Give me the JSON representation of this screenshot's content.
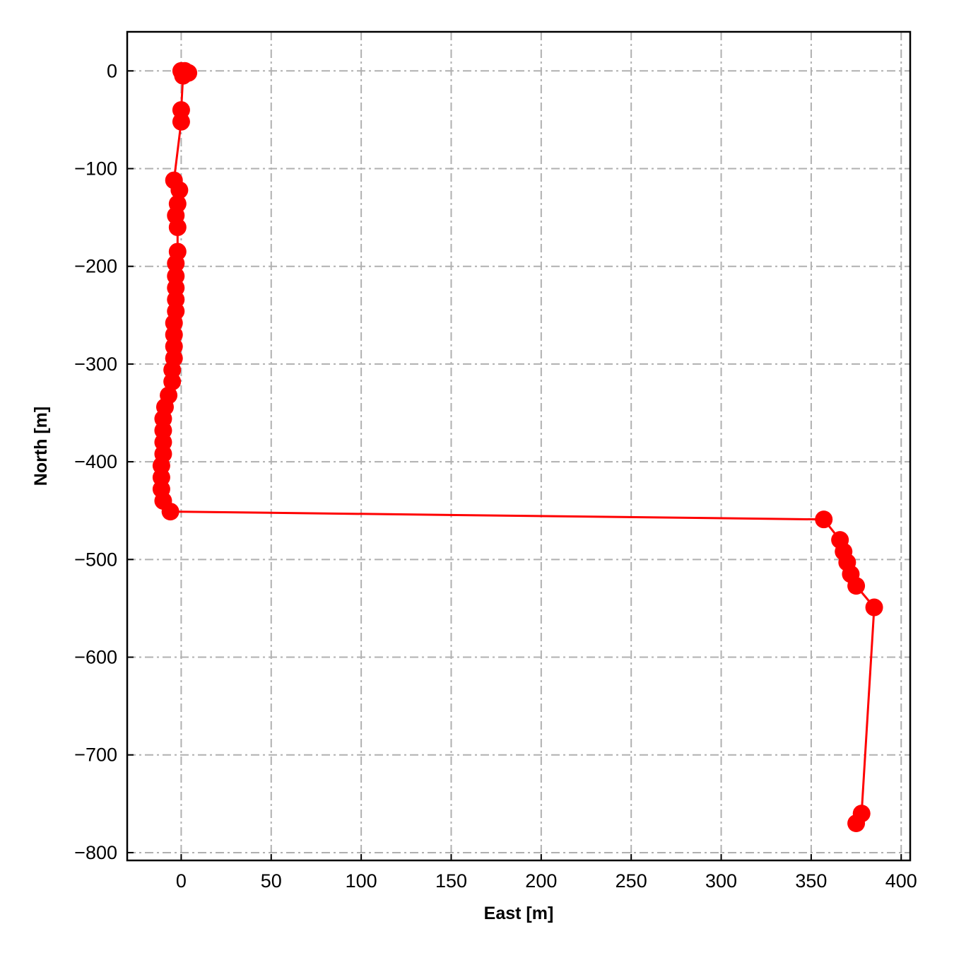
{
  "chart_data": {
    "type": "line",
    "title": "",
    "xlabel": "East [m]",
    "ylabel": "North [m]",
    "xlim": [
      -30,
      405
    ],
    "ylim": [
      -808,
      40
    ],
    "xticks": [
      0,
      50,
      100,
      150,
      200,
      250,
      300,
      350,
      400
    ],
    "yticks": [
      0,
      -100,
      -200,
      -300,
      -400,
      -500,
      -600,
      -700,
      -800
    ],
    "xtick_labels": [
      "0",
      "50",
      "100",
      "150",
      "200",
      "250",
      "300",
      "350",
      "400"
    ],
    "ytick_labels": [
      "0",
      "−100",
      "−200",
      "−300",
      "−400",
      "−500",
      "−600",
      "−700",
      "−800"
    ],
    "grid": true,
    "grid_style": "dash-dot",
    "legend": "none",
    "series": [
      {
        "color": "#ff0000",
        "marker": "circle",
        "points": [
          [
            0,
            0
          ],
          [
            2,
            0
          ],
          [
            4,
            -2
          ],
          [
            1,
            -5
          ],
          [
            0,
            -40
          ],
          [
            0,
            -52
          ],
          [
            -4,
            -112
          ],
          [
            -1,
            -122
          ],
          [
            -2,
            -136
          ],
          [
            -3,
            -148
          ],
          [
            -2,
            -160
          ],
          [
            -2,
            -185
          ],
          [
            -3,
            -197
          ],
          [
            -3,
            -210
          ],
          [
            -3,
            -222
          ],
          [
            -3,
            -234
          ],
          [
            -3,
            -246
          ],
          [
            -4,
            -258
          ],
          [
            -4,
            -270
          ],
          [
            -4,
            -282
          ],
          [
            -4,
            -294
          ],
          [
            -5,
            -306
          ],
          [
            -5,
            -318
          ],
          [
            -7,
            -332
          ],
          [
            -9,
            -344
          ],
          [
            -10,
            -356
          ],
          [
            -10,
            -368
          ],
          [
            -10,
            -380
          ],
          [
            -10,
            -392
          ],
          [
            -11,
            -404
          ],
          [
            -11,
            -416
          ],
          [
            -11,
            -428
          ],
          [
            -10,
            -440
          ],
          [
            -6,
            -451
          ],
          [
            357,
            -459
          ],
          [
            366,
            -480
          ],
          [
            368,
            -492
          ],
          [
            370,
            -503
          ],
          [
            372,
            -515
          ],
          [
            375,
            -527
          ],
          [
            385,
            -549
          ],
          [
            378,
            -760
          ],
          [
            375,
            -770
          ]
        ]
      }
    ]
  }
}
